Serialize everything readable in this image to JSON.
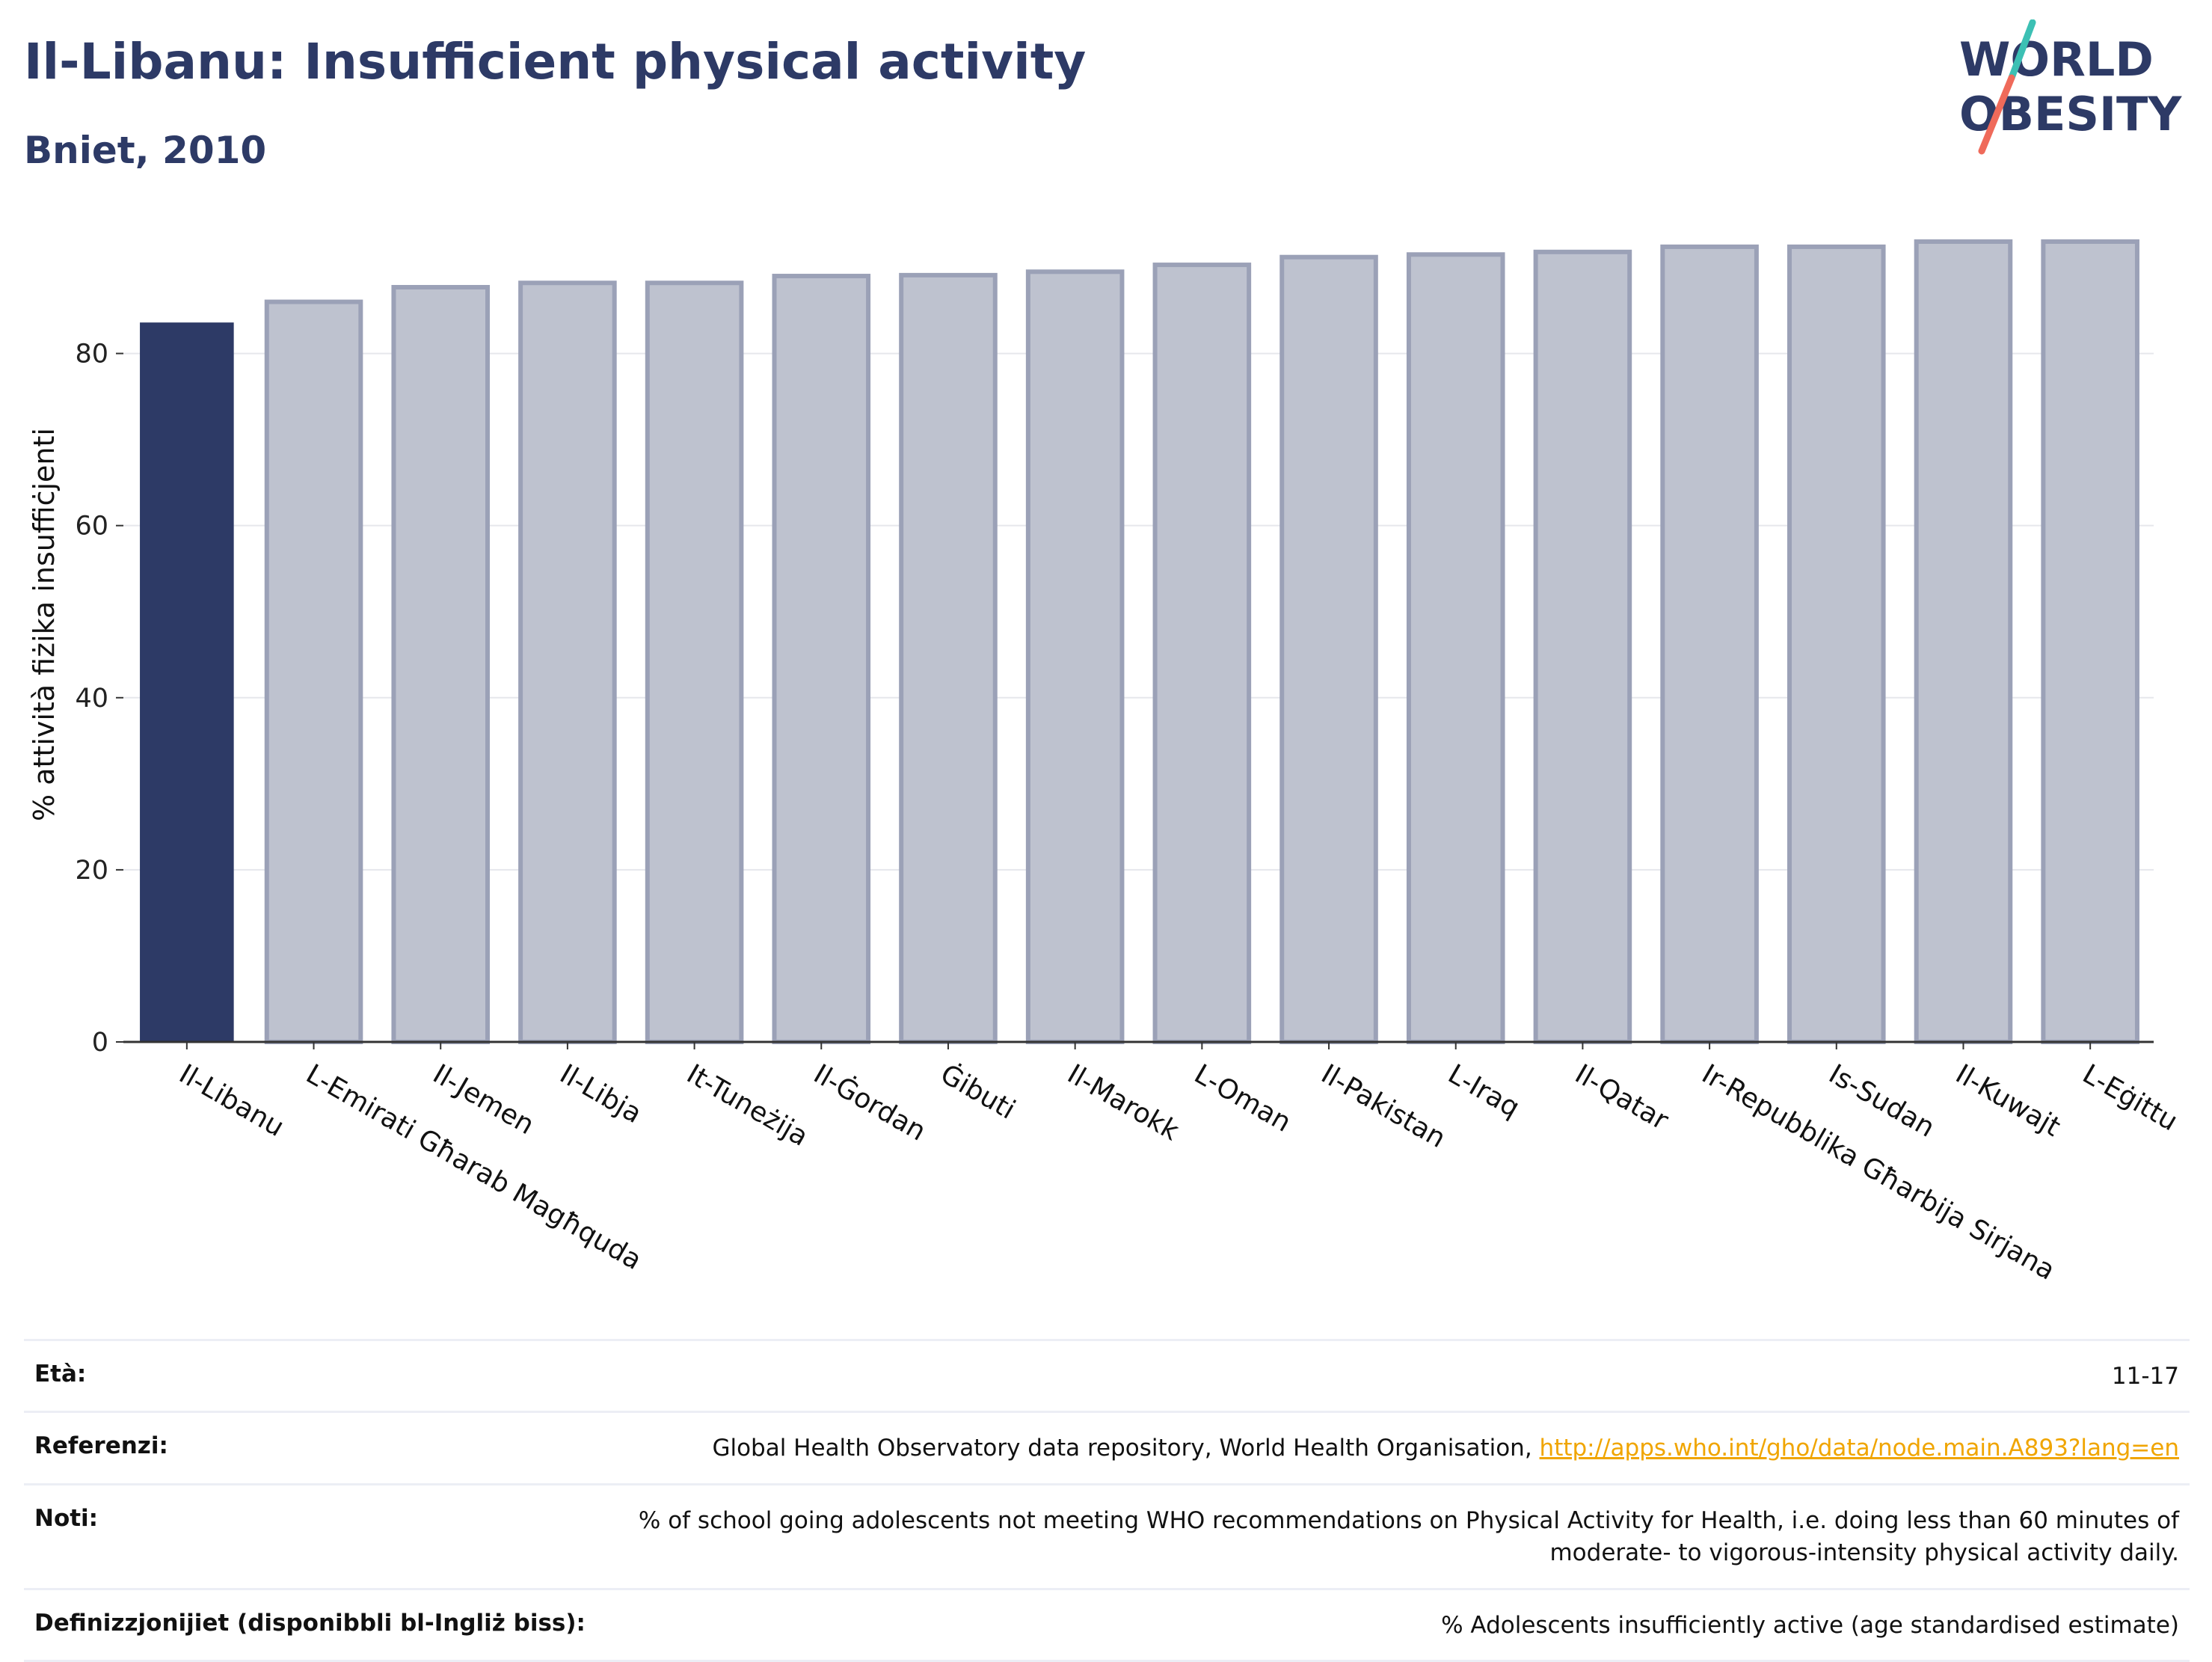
{
  "header": {
    "title": "Il-Libanu: Insufficient physical activity",
    "subtitle": "Bniet, 2010"
  },
  "logo": {
    "line1": "WORLD",
    "line2": "OBESITY",
    "colors": {
      "text": "#2d3a66",
      "slash_top": "#3cc0b4",
      "slash_bottom": "#ef6a5a"
    }
  },
  "colors": {
    "highlight_bar": "#2d3a66",
    "other_bar_fill": "#bec2cf",
    "other_bar_stroke": "#9ba1b7"
  },
  "chart_data": {
    "type": "bar",
    "title": "",
    "xlabel": "",
    "ylabel": "% attività fiżika insuffiċjenti",
    "ylim": [
      0,
      95
    ],
    "yticks": [
      0,
      20,
      40,
      60,
      80
    ],
    "grid": true,
    "highlight": "Il-Libanu",
    "categories": [
      "Il-Libanu",
      "L-Emirati Għarab Magħquda",
      "Il-Jemen",
      "Il-Libja",
      "It-Tuneżija",
      "Il-Ġordan",
      "Ġibuti",
      "Il-Marokk",
      "L-Oman",
      "Il-Pakistan",
      "L-Iraq",
      "Il-Qatar",
      "Ir-Repubblika Għarbija Sirjana",
      "Is-Sudan",
      "Il-Kuwajt",
      "L-Eġittu"
    ],
    "values": [
      83.6,
      86.0,
      87.7,
      88.2,
      88.2,
      89.0,
      89.1,
      89.5,
      90.3,
      91.2,
      91.5,
      91.8,
      92.4,
      92.4,
      93.0,
      93.0
    ]
  },
  "info": [
    {
      "label": "Età:",
      "value": "11-17"
    },
    {
      "label": "Referenzi:",
      "value": "Global Health Observatory data repository, World Health Organisation,",
      "link": "http://apps.who.int/gho/data/node.main.A893?lang=en"
    },
    {
      "label": "Noti:",
      "value": "% of school going adolescents not meeting WHO recommendations on Physical Activity for Health, i.e. doing less than 60 minutes of moderate- to vigorous-intensity physical activity daily."
    },
    {
      "label": "Definizzjonijiet (disponibbli bl-Ingliż biss):",
      "value": "% Adolescents insufficiently active (age standardised estimate)"
    }
  ]
}
